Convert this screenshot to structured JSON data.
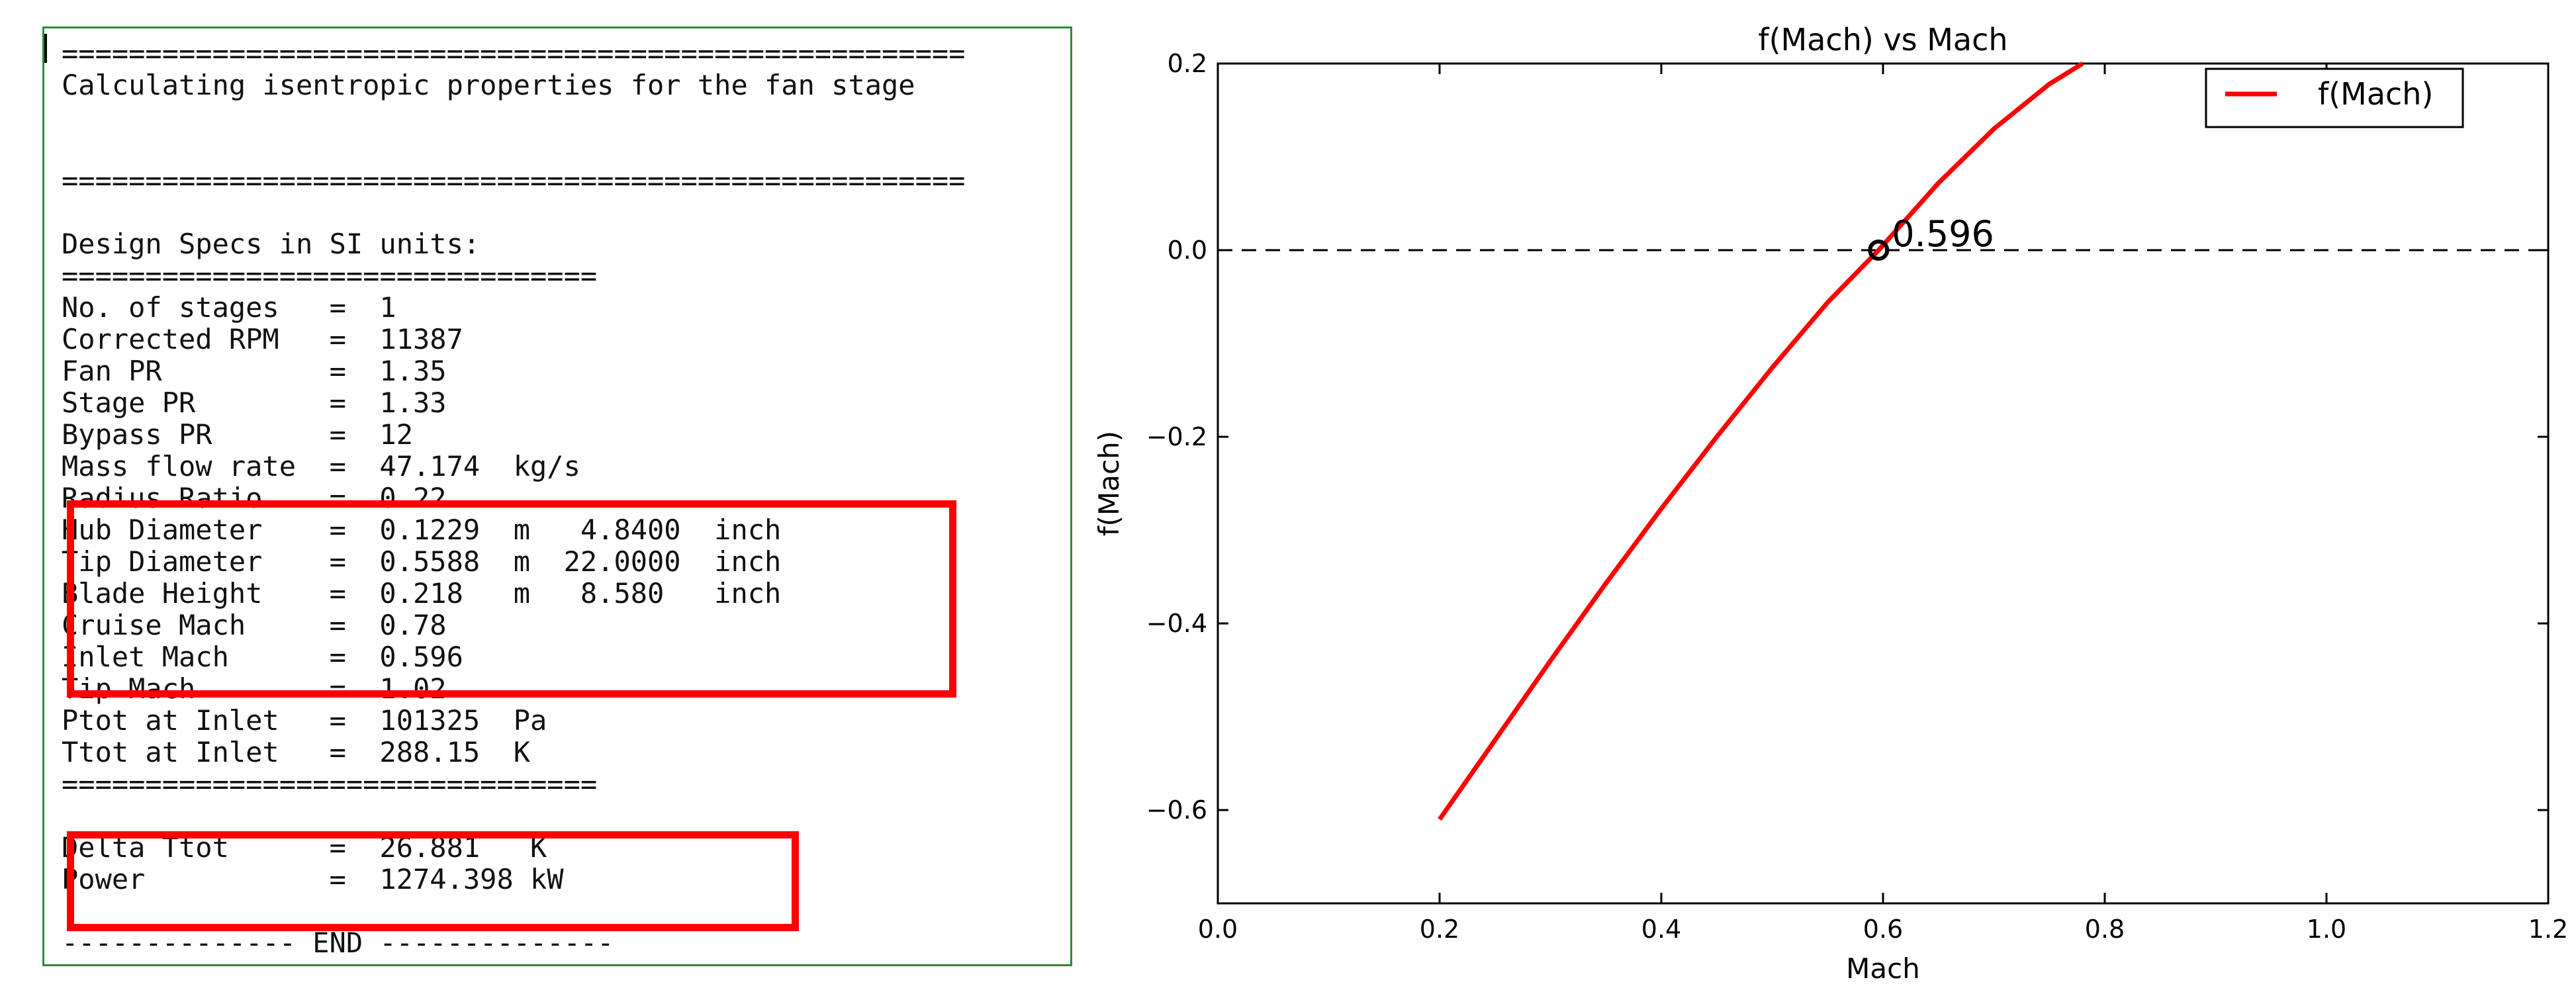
{
  "console": {
    "lines": [
      "======================================================",
      "Calculating isentropic properties for the fan stage",
      "",
      "",
      "======================================================",
      "",
      "Design Specs in SI units:",
      "================================",
      "No. of stages   =  1",
      "Corrected RPM   =  11387",
      "Fan PR          =  1.35",
      "Stage PR        =  1.33",
      "Bypass PR       =  12",
      "Mass flow rate  =  47.174  kg/s",
      "Radius Ratio    =  0.22",
      "Hub Diameter    =  0.1229  m   4.8400  inch",
      "Tip Diameter    =  0.5588  m  22.0000  inch",
      "Blade Height    =  0.218   m   8.580   inch",
      "Cruise Mach     =  0.78",
      "Inlet Mach      =  0.596",
      "Tip Mach        =  1.02",
      "Ptot at Inlet   =  101325  Pa",
      "Ttot at Inlet   =  288.15  K",
      "================================",
      "",
      "Delta Ttot      =  26.881   K",
      "Power           =  1274.398 kW",
      "",
      "-------------- END --------------"
    ]
  },
  "colors": {
    "console_border": "#2e8b3a",
    "highlight": "#ff0000",
    "curve": "#ff0000",
    "zero_line": "#000000"
  },
  "chart_data": {
    "type": "line",
    "title": "f(Mach) vs Mach",
    "xlabel": "Mach",
    "ylabel": "f(Mach)",
    "xlim": [
      0.0,
      1.2
    ],
    "ylim": [
      -0.7,
      0.2
    ],
    "xticks": [
      "0.0",
      "0.2",
      "0.4",
      "0.6",
      "0.8",
      "1.0",
      "1.2"
    ],
    "yticks": [
      "−0.6",
      "−0.4",
      "−0.2",
      "0.0",
      "0.2"
    ],
    "legend": {
      "position": "top-right",
      "entries": [
        "f(Mach)"
      ]
    },
    "grid": false,
    "series": [
      {
        "name": "f(Mach)",
        "x": [
          0.2,
          0.25,
          0.3,
          0.35,
          0.4,
          0.45,
          0.5,
          0.55,
          0.596,
          0.65,
          0.7,
          0.75,
          0.78
        ],
        "y": [
          -0.61,
          -0.525,
          -0.44,
          -0.357,
          -0.277,
          -0.2,
          -0.126,
          -0.056,
          0.0,
          0.072,
          0.13,
          0.178,
          0.2
        ]
      }
    ],
    "reference_line": {
      "y": 0.0,
      "style": "dashed"
    },
    "annotation": {
      "x": 0.596,
      "y": 0.0,
      "text": "0.596",
      "marker": "circle"
    }
  }
}
